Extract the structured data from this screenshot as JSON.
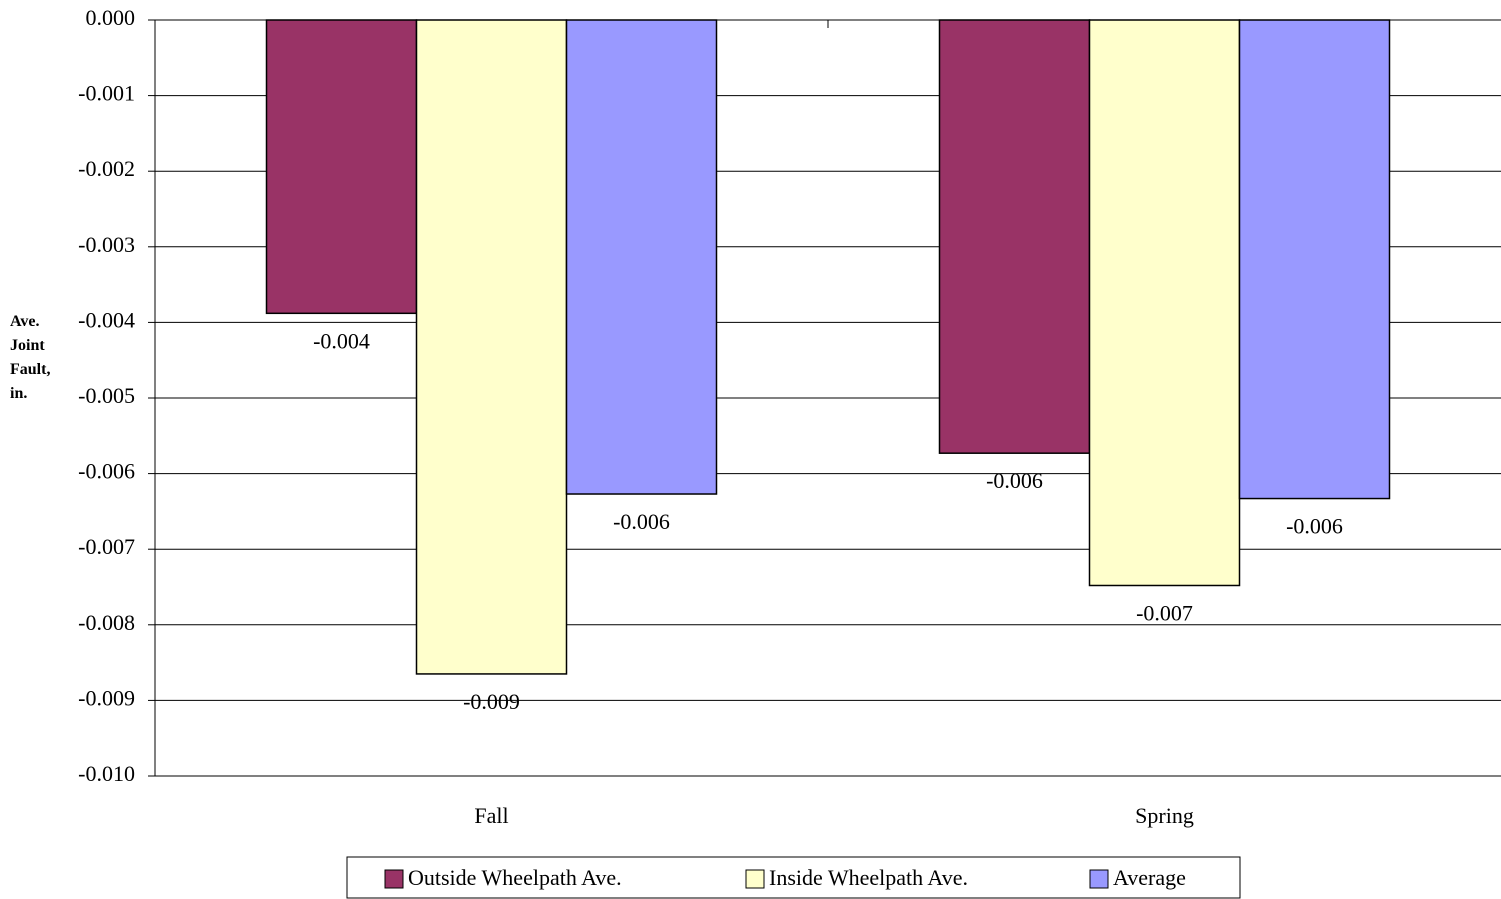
{
  "chart_data": {
    "type": "bar",
    "y_label": "Ave. Joint Fault, in.",
    "categories": [
      "Fall",
      "Spring"
    ],
    "series": [
      {
        "name": "Outside Wheelpath Ave.",
        "color": "#993366",
        "values": [
          -0.00388,
          -0.00573
        ],
        "value_labels": [
          "-0.004",
          "-0.006"
        ]
      },
      {
        "name": "Inside Wheelpath Ave.",
        "color": "#ffffcc",
        "values": [
          -0.00865,
          -0.00748
        ],
        "value_labels": [
          "-0.009",
          "-0.007"
        ]
      },
      {
        "name": "Average",
        "color": "#9999ff",
        "values": [
          -0.00627,
          -0.00633
        ],
        "value_labels": [
          "-0.006",
          "-0.006"
        ]
      }
    ],
    "ylim": [
      -0.01,
      0
    ],
    "yticks": [
      {
        "value": 0,
        "label": "0.000"
      },
      -0.001,
      -0.002,
      -0.003,
      -0.004,
      -0.005,
      -0.006,
      -0.007,
      -0.008,
      -0.009,
      {
        "value": -0.01,
        "label": "-0.010"
      }
    ],
    "grid": true,
    "legend": "bottom"
  }
}
